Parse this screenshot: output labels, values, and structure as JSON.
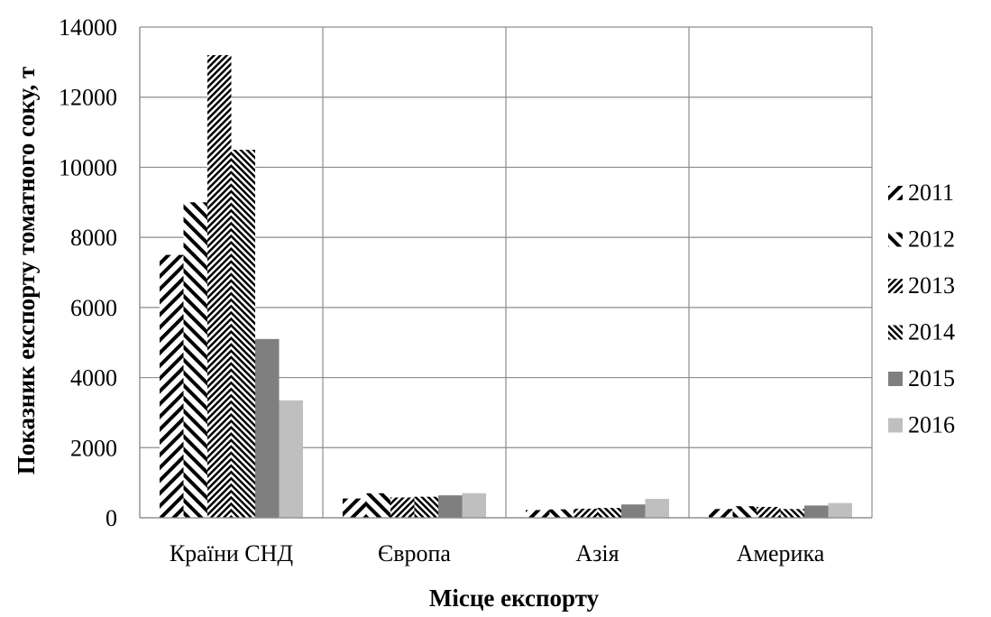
{
  "chart_data": {
    "type": "bar",
    "title": "",
    "xlabel": "Місце експорту",
    "ylabel": "Показник експорту томатного соку, т",
    "categories": [
      "Країни СНД",
      "Європа",
      "Азія",
      "Америка"
    ],
    "ylim": [
      0,
      14000
    ],
    "yticks": [
      0,
      2000,
      4000,
      6000,
      8000,
      10000,
      12000,
      14000
    ],
    "grid": true,
    "legend_position": "right",
    "series": [
      {
        "name": "2011",
        "pattern": "diagonal-up",
        "color": "#000000",
        "values": [
          7500,
          550,
          220,
          250
        ]
      },
      {
        "name": "2012",
        "pattern": "diagonal-down",
        "color": "#000000",
        "values": [
          9000,
          700,
          240,
          330
        ]
      },
      {
        "name": "2013",
        "pattern": "fine-diagonal-up",
        "color": "#000000",
        "values": [
          13200,
          580,
          260,
          310
        ]
      },
      {
        "name": "2014",
        "pattern": "fine-diagonal-down",
        "color": "#000000",
        "values": [
          10500,
          600,
          280,
          250
        ]
      },
      {
        "name": "2015",
        "pattern": "solid",
        "color": "#7f7f7f",
        "values": [
          5100,
          640,
          380,
          350
        ]
      },
      {
        "name": "2016",
        "pattern": "solid",
        "color": "#bfbfbf",
        "values": [
          3350,
          700,
          540,
          420
        ]
      }
    ]
  }
}
